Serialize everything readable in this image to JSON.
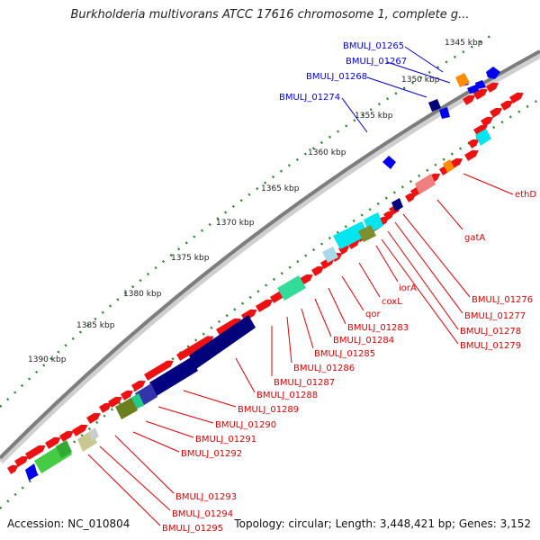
{
  "title": "Burkholderia multivorans ATCC 17616 chromosome 1, complete g...",
  "footer": {
    "accession": "Accession: NC_010804",
    "topology": "Topology: circular; Length: 3,448,421 bp; Genes: 3,152"
  },
  "colors": {
    "axis": "#8a8a8a",
    "ticks": "#228b22",
    "forward": "#0000ee",
    "reverse_label": "#dd0000",
    "leader_forward": "#0000cc",
    "leader_reverse": "#e00000",
    "red_gene": "#ee1111"
  },
  "kbp_labels": [
    "1345 kbp",
    "1350 kbp",
    "1355 kbp",
    "1360 kbp",
    "1365 kbp",
    "1370 kbp",
    "1375 kbp",
    "1380 kbp",
    "1385 kbp",
    "1390 kbp"
  ],
  "forward_labels": [
    "BMULJ_01265",
    "BMULJ_01267",
    "BMULJ_01268",
    "BMULJ_01274"
  ],
  "reverse_labels": [
    "ethD",
    "gatA",
    "BMULJ_01276",
    "BMULJ_01277",
    "BMULJ_01278",
    "BMULJ_01279",
    "iorA",
    "coxL",
    "qor",
    "BMULJ_01283",
    "BMULJ_01284",
    "BMULJ_01285",
    "BMULJ_01286",
    "BMULJ_01287",
    "BMULJ_01288",
    "BMULJ_01289",
    "BMULJ_01290",
    "BMULJ_01291",
    "BMULJ_01292",
    "BMULJ_01293",
    "BMULJ_01294",
    "BMULJ_01295"
  ]
}
